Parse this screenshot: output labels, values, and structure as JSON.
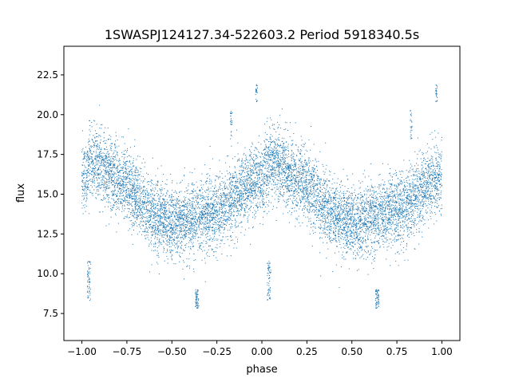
{
  "chart_data": {
    "type": "scatter",
    "title": "1SWASPJ124127.34-522603.2 Period 5918340.5s",
    "xlabel": "phase",
    "ylabel": "flux",
    "xlim": [
      -1.1,
      1.1
    ],
    "ylim": [
      5.8,
      24.3
    ],
    "xticks": [
      -1.0,
      -0.75,
      -0.5,
      -0.25,
      0.0,
      0.25,
      0.5,
      0.75,
      1.0
    ],
    "xtick_labels": [
      "−1.00",
      "−0.75",
      "−0.50",
      "−0.25",
      "0.00",
      "0.25",
      "0.50",
      "0.75",
      "1.00"
    ],
    "yticks": [
      7.5,
      10.0,
      12.5,
      15.0,
      17.5,
      20.0,
      22.5
    ],
    "ytick_labels": [
      "7.5",
      "10.0",
      "12.5",
      "15.0",
      "17.5",
      "20.0",
      "22.5"
    ],
    "grid": false,
    "point_color": "#1f77b4",
    "series": [
      {
        "trend": {
          "phase": [
            0.0,
            0.03,
            0.05,
            0.08,
            0.12,
            0.16,
            0.2,
            0.25,
            0.3,
            0.35,
            0.4,
            0.45,
            0.5,
            0.55,
            0.6,
            0.65,
            0.7,
            0.75,
            0.8,
            0.85,
            0.9,
            0.95,
            1.0
          ],
          "flux": [
            15.8,
            16.6,
            17.0,
            17.0,
            16.6,
            16.2,
            15.9,
            15.6,
            14.9,
            14.1,
            13.7,
            13.5,
            13.2,
            13.1,
            13.4,
            13.6,
            13.8,
            14.0,
            14.3,
            14.8,
            15.3,
            15.9,
            16.1
          ]
        },
        "scatter_sd": 1.1,
        "dips": [
          {
            "phase": 0.04,
            "flux_range": [
              8.3,
              10.8
            ]
          },
          {
            "phase": 0.64,
            "flux_range": [
              7.8,
              9.0
            ]
          }
        ],
        "spikes": [
          {
            "phase": -0.17,
            "flux_range": [
              18.4,
              20.3
            ]
          },
          {
            "phase": 0.83,
            "flux_range": [
              18.4,
              20.3
            ]
          },
          {
            "phase": -0.03,
            "flux_range": [
              20.8,
              22.0
            ]
          },
          {
            "phase": 0.97,
            "flux_range": [
              20.8,
              22.0
            ]
          }
        ],
        "approx_point_count": 9000
      }
    ]
  }
}
